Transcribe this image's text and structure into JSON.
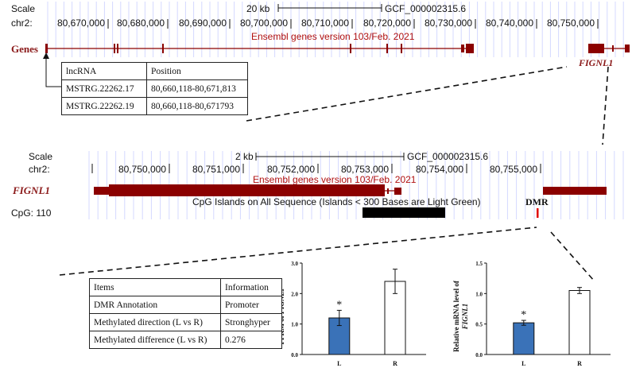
{
  "panel1": {
    "scale_label": "Scale",
    "chr_label": "chr2:",
    "scale_bar_text": "20 kb",
    "assembly": "GCF_000002315.6",
    "positions": [
      "80,670,000",
      "80,680,000",
      "80,690,000",
      "80,700,000",
      "80,710,000",
      "80,720,000",
      "80,730,000",
      "80,740,000",
      "80,750,000"
    ],
    "track_title": "Ensembl genes version 103/Feb. 2021",
    "genes_label": "Genes",
    "gene_name": "FIGNL1"
  },
  "lncrna_table": {
    "headers": [
      "lncRNA",
      "Position"
    ],
    "rows": [
      [
        "MSTRG.22262.17",
        "80,660,118-80,671,813"
      ],
      [
        "MSTRG.22262.19",
        "80,660,118-80,671793"
      ]
    ]
  },
  "panel2": {
    "scale_label": "Scale",
    "chr_label": "chr2:",
    "scale_bar_text": "2 kb",
    "assembly": "GCF_000002315.6",
    "positions": [
      "80,750,000",
      "80,751,000",
      "80,752,000",
      "80,753,000",
      "80,754,000",
      "80,755,000"
    ],
    "track_title": "Ensembl genes version 103/Feb. 2021",
    "gene_name": "FIGNL1",
    "cpg_label": "CpG: 110",
    "cpg_title": "CpG Islands on All Sequence (Islands < 300 Bases are Light Green)",
    "dmr_label": "DMR"
  },
  "dmr_table": {
    "headers": [
      "Items",
      "Information"
    ],
    "rows": [
      [
        "DMR Annotation",
        "Promoter"
      ],
      [
        "Methylated direction (L vs R)",
        "Stronghyper"
      ],
      [
        "Methylated difference (L vs R)",
        "0.276"
      ]
    ]
  },
  "chart_data": [
    {
      "type": "bar",
      "title": "",
      "ylabel_prefix": "FPKM of ",
      "ylabel_gene": "FIGNL1",
      "categories": [
        "L",
        "R"
      ],
      "values": [
        1.2,
        2.4
      ],
      "errors": [
        0.25,
        0.4
      ],
      "colors": [
        "#3a72b8",
        "#ffffff"
      ],
      "significance": [
        "*",
        ""
      ],
      "ylim": [
        0,
        3.0
      ],
      "yticks": [
        0.0,
        1.0,
        2.0,
        3.0
      ],
      "ytick_labels": [
        "0.0",
        "1.0",
        "2.0",
        "3.0"
      ]
    },
    {
      "type": "bar",
      "title": "",
      "ylabel_line1": "Relative mRNA level of",
      "ylabel_gene": "FIGNL1",
      "categories": [
        "L",
        "R"
      ],
      "values": [
        0.52,
        1.05
      ],
      "errors": [
        0.04,
        0.05
      ],
      "colors": [
        "#3a72b8",
        "#ffffff"
      ],
      "significance": [
        "*",
        ""
      ],
      "ylim": [
        0,
        1.5
      ],
      "yticks": [
        0.0,
        0.5,
        1.0,
        1.5
      ],
      "ytick_labels": [
        "0.0",
        "0.5",
        "1.0",
        "1.5"
      ]
    }
  ]
}
